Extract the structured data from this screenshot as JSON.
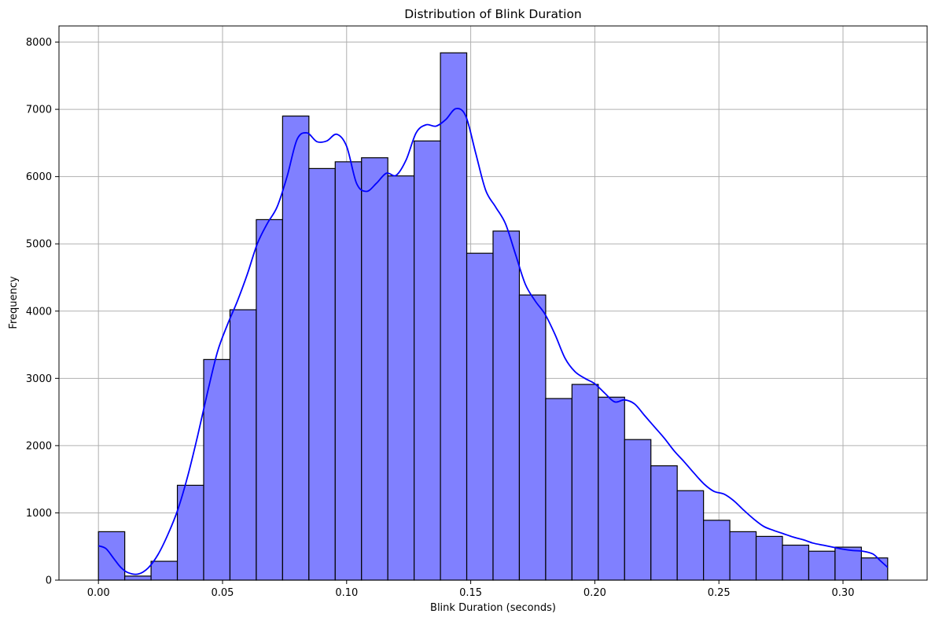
{
  "chart_data": {
    "type": "histogram",
    "title": "Distribution of Blink Duration",
    "xlabel": "Blink Duration (seconds)",
    "ylabel": "Frequency",
    "xlim": [
      -0.0159,
      0.3339
    ],
    "ylim": [
      0,
      8240
    ],
    "grid": true,
    "bar_color": "#8080ff",
    "edge_color": "#000000",
    "kde_color": "#0000ff",
    "x_ticks": [
      "0.00",
      "0.05",
      "0.10",
      "0.15",
      "0.20",
      "0.25",
      "0.30"
    ],
    "x_tick_values": [
      0,
      0.05,
      0.1,
      0.15,
      0.2,
      0.25,
      0.3
    ],
    "y_ticks": [
      "0",
      "1000",
      "2000",
      "3000",
      "4000",
      "5000",
      "6000",
      "7000",
      "8000"
    ],
    "y_tick_values": [
      0,
      1000,
      2000,
      3000,
      4000,
      5000,
      6000,
      7000,
      8000
    ],
    "bin_edges": [
      0.0,
      0.0106,
      0.0212,
      0.0318,
      0.0424,
      0.053,
      0.0636,
      0.0742,
      0.0848,
      0.0954,
      0.106,
      0.1166,
      0.1272,
      0.1378,
      0.1484,
      0.159,
      0.1696,
      0.1802,
      0.1908,
      0.2014,
      0.212,
      0.2226,
      0.2332,
      0.2438,
      0.2544,
      0.265,
      0.2756,
      0.2862,
      0.2968,
      0.3074,
      0.318
    ],
    "counts": [
      720,
      60,
      280,
      1410,
      3280,
      4020,
      5360,
      6900,
      6120,
      6220,
      6280,
      6010,
      6530,
      7840,
      4860,
      5190,
      4240,
      2700,
      2910,
      2720,
      2090,
      1700,
      1330,
      890,
      720,
      650,
      520,
      430,
      490,
      330
    ],
    "kde": {
      "x": [
        0.0,
        0.003,
        0.006,
        0.009,
        0.012,
        0.016,
        0.02,
        0.024,
        0.028,
        0.032,
        0.036,
        0.04,
        0.044,
        0.048,
        0.052,
        0.056,
        0.06,
        0.064,
        0.068,
        0.072,
        0.076,
        0.08,
        0.084,
        0.088,
        0.092,
        0.096,
        0.1,
        0.104,
        0.108,
        0.112,
        0.116,
        0.12,
        0.124,
        0.128,
        0.132,
        0.136,
        0.14,
        0.144,
        0.148,
        0.152,
        0.156,
        0.16,
        0.164,
        0.168,
        0.172,
        0.176,
        0.18,
        0.184,
        0.188,
        0.192,
        0.196,
        0.2,
        0.204,
        0.208,
        0.212,
        0.216,
        0.22,
        0.224,
        0.228,
        0.232,
        0.236,
        0.24,
        0.244,
        0.248,
        0.252,
        0.256,
        0.26,
        0.264,
        0.268,
        0.272,
        0.276,
        0.28,
        0.284,
        0.288,
        0.292,
        0.296,
        0.3,
        0.304,
        0.308,
        0.312,
        0.315,
        0.318
      ],
      "y": [
        510,
        470,
        330,
        190,
        110,
        90,
        180,
        380,
        680,
        1050,
        1550,
        2150,
        2800,
        3400,
        3800,
        4150,
        4550,
        5000,
        5300,
        5550,
        6000,
        6550,
        6650,
        6520,
        6530,
        6630,
        6450,
        5900,
        5780,
        5900,
        6050,
        6020,
        6250,
        6650,
        6770,
        6750,
        6850,
        7010,
        6900,
        6350,
        5800,
        5550,
        5300,
        4850,
        4400,
        4150,
        3950,
        3650,
        3300,
        3100,
        3000,
        2920,
        2780,
        2650,
        2680,
        2620,
        2450,
        2280,
        2110,
        1920,
        1760,
        1590,
        1430,
        1320,
        1280,
        1180,
        1040,
        910,
        800,
        740,
        690,
        640,
        600,
        550,
        520,
        490,
        460,
        440,
        430,
        390,
        290,
        190
      ]
    }
  }
}
